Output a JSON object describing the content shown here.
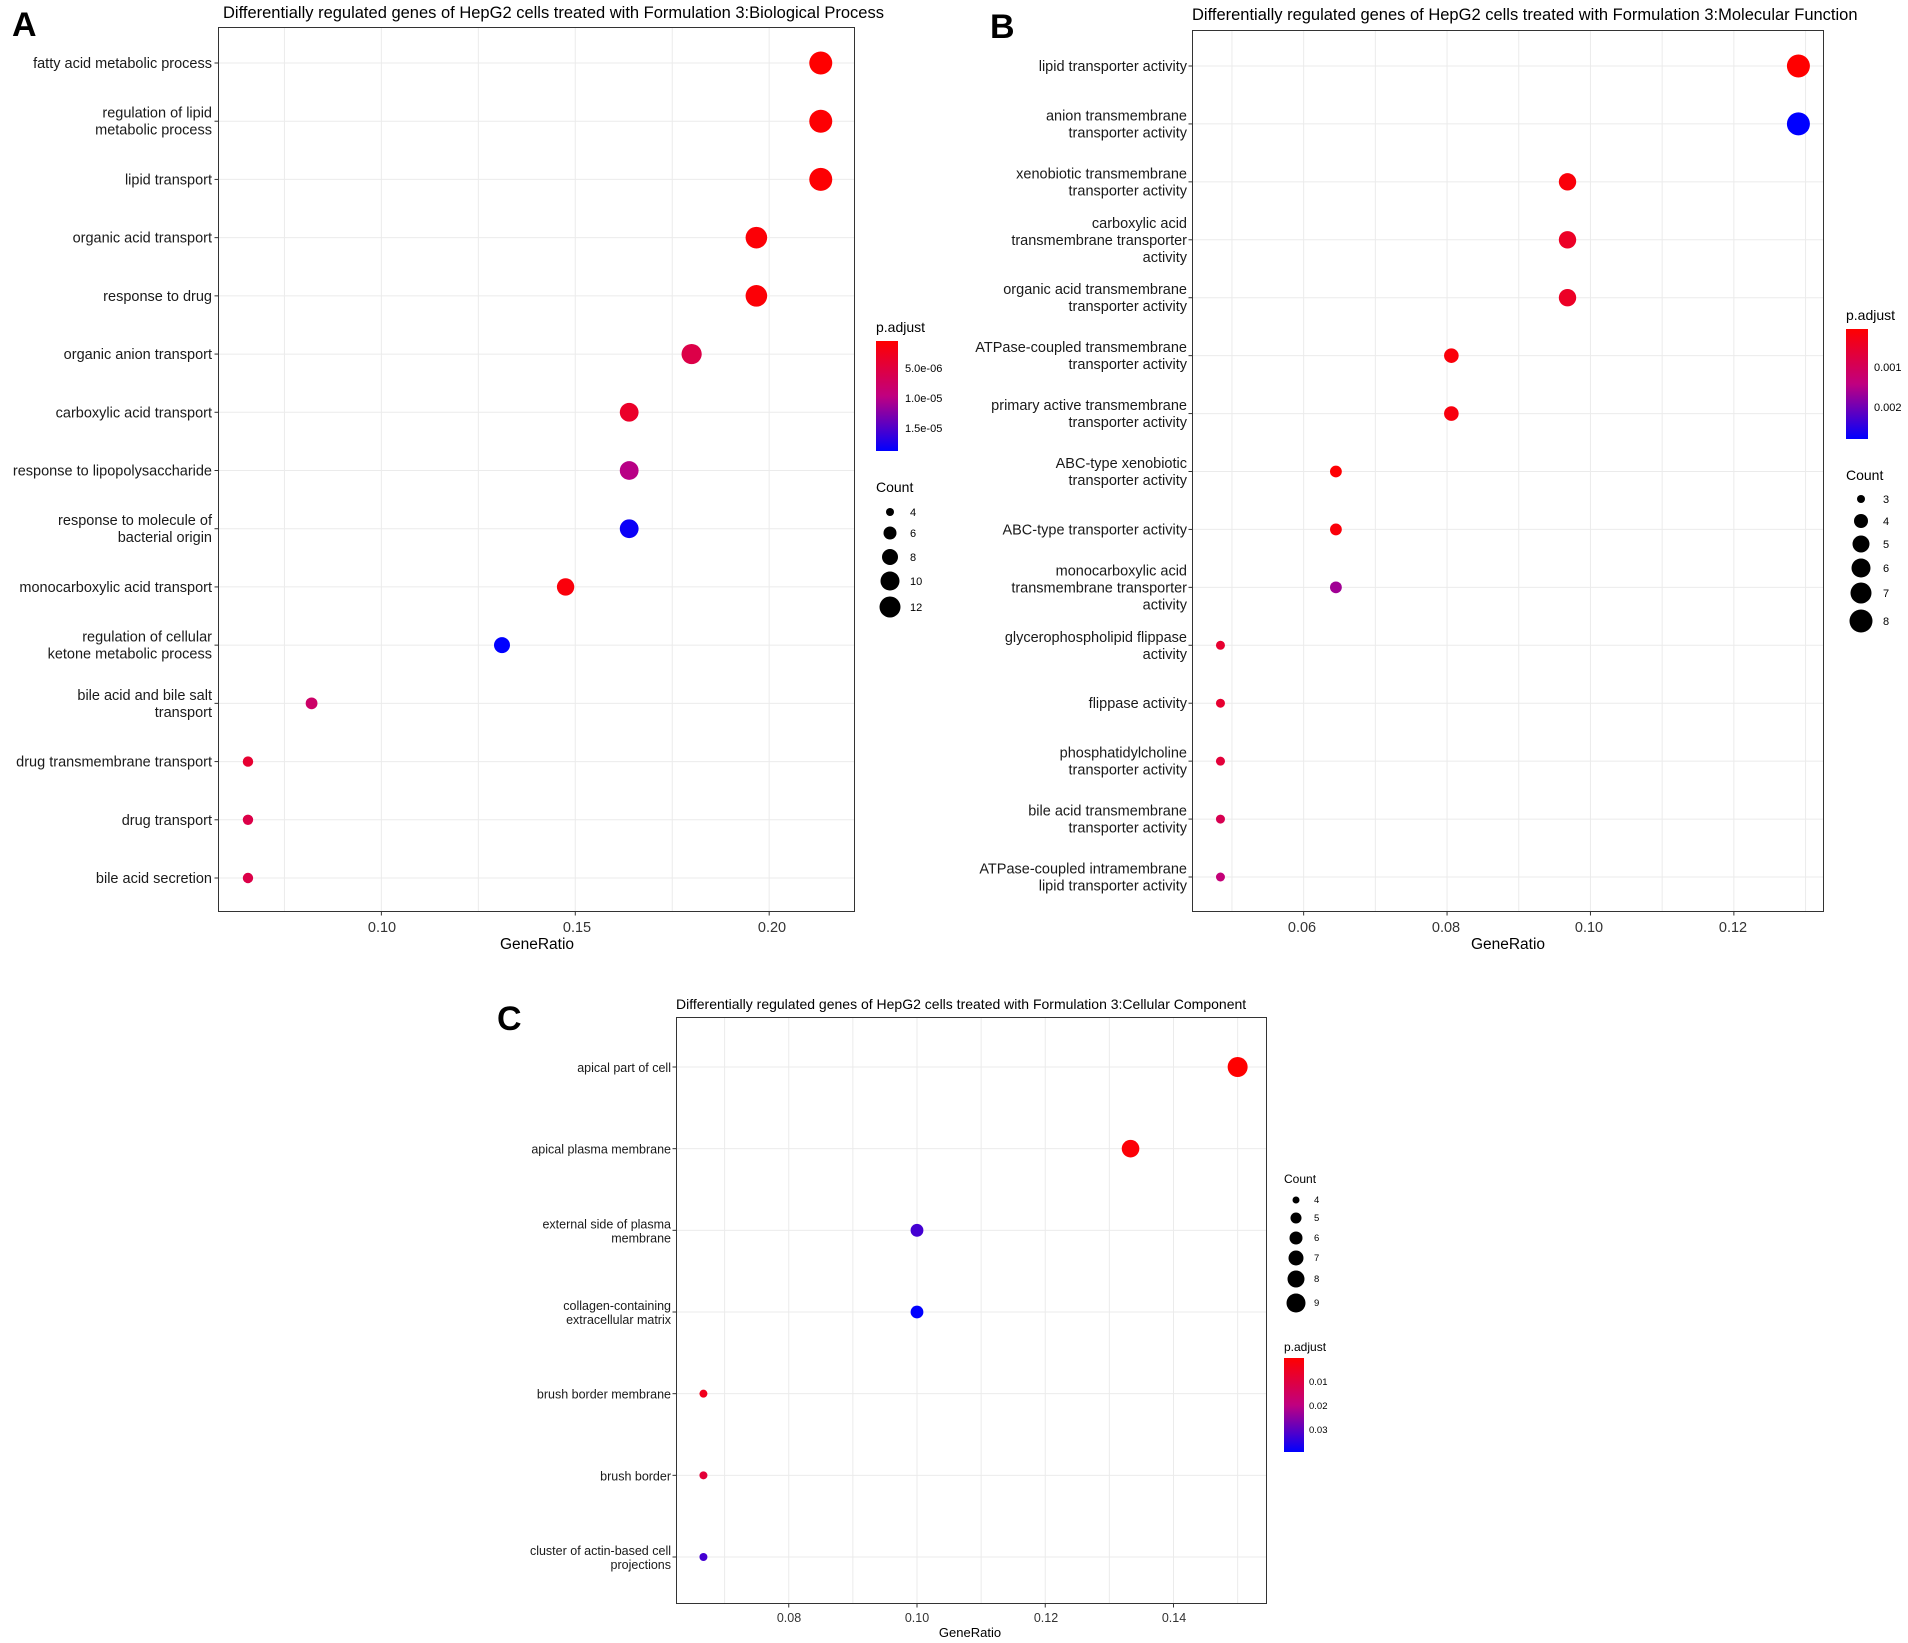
{
  "panels": [
    {
      "label": "A",
      "title": "Differentially regulated genes of HepG2 cells treated with Formulation 3:Biological Process",
      "xlabel": "GeneRatio",
      "xticks": [
        "0.10",
        "0.15",
        "0.20"
      ],
      "legend_padjust": {
        "title": "p.adjust",
        "labels": [
          "5.0e-06",
          "1.0e-05",
          "1.5e-05"
        ]
      },
      "legend_count": {
        "title": "Count",
        "labels": [
          "4",
          "6",
          "8",
          "10",
          "12"
        ]
      }
    },
    {
      "label": "B",
      "title": "Differentially regulated genes of HepG2 cells treated with Formulation 3:Molecular Function",
      "xlabel": "GeneRatio",
      "xticks": [
        "0.06",
        "0.08",
        "0.10",
        "0.12"
      ],
      "legend_padjust": {
        "title": "p.adjust",
        "labels": [
          "0.001",
          "0.002"
        ]
      },
      "legend_count": {
        "title": "Count",
        "labels": [
          "3",
          "4",
          "5",
          "6",
          "7",
          "8"
        ]
      }
    },
    {
      "label": "C",
      "title": "Differentially regulated genes of HepG2 cells treated with Formulation 3:Cellular Component",
      "xlabel": "GeneRatio",
      "xticks": [
        "0.08",
        "0.10",
        "0.12",
        "0.14"
      ],
      "legend_padjust": {
        "title": "p.adjust",
        "labels": [
          "0.01",
          "0.02",
          "0.03"
        ]
      },
      "legend_count": {
        "title": "Count",
        "labels": [
          "4",
          "5",
          "6",
          "7",
          "8",
          "9"
        ]
      }
    }
  ],
  "colors": {
    "low_padjust": "#ff0000",
    "high_padjust": "#0000ff",
    "point": "#000000"
  },
  "chart_data": [
    {
      "type": "scatter",
      "panel": "A",
      "title": "Differentially regulated genes of HepG2 cells treated with Formulation 3:Biological Process",
      "xlabel": "GeneRatio",
      "ylabel": "",
      "xlim": [
        0.058,
        0.222
      ],
      "grid": true,
      "padjust_range": [
        8e-07,
        1.75e-05
      ],
      "count_range": [
        3,
        13
      ],
      "series": [
        {
          "name": "fatty acid metabolic process",
          "label_lines": [
            "fatty acid metabolic process"
          ],
          "x": 0.2133,
          "count": 13,
          "padjust": 8e-07
        },
        {
          "name": "regulation of lipid metabolic process",
          "label_lines": [
            "regulation of lipid",
            "metabolic process"
          ],
          "x": 0.2133,
          "count": 13,
          "padjust": 1e-06
        },
        {
          "name": "lipid transport",
          "label_lines": [
            "lipid transport"
          ],
          "x": 0.2133,
          "count": 13,
          "padjust": 1e-06
        },
        {
          "name": "organic acid transport",
          "label_lines": [
            "organic acid transport"
          ],
          "x": 0.1967,
          "count": 12,
          "padjust": 1.2e-06
        },
        {
          "name": "response to drug",
          "label_lines": [
            "response to drug"
          ],
          "x": 0.1967,
          "count": 12,
          "padjust": 1.2e-06
        },
        {
          "name": "organic anion transport",
          "label_lines": [
            "organic anion transport"
          ],
          "x": 0.18,
          "count": 11,
          "padjust": 5.5e-06
        },
        {
          "name": "carboxylic acid transport",
          "label_lines": [
            "carboxylic acid transport"
          ],
          "x": 0.1639,
          "count": 10,
          "padjust": 3.5e-06
        },
        {
          "name": "response to lipopolysaccharide",
          "label_lines": [
            "response to lipopolysaccharide"
          ],
          "x": 0.1639,
          "count": 10,
          "padjust": 9.5e-06
        },
        {
          "name": "response to molecule of bacterial origin",
          "label_lines": [
            "response to molecule of",
            "bacterial origin"
          ],
          "x": 0.1639,
          "count": 10,
          "padjust": 1.7e-05
        },
        {
          "name": "monocarboxylic acid transport",
          "label_lines": [
            "monocarboxylic acid transport"
          ],
          "x": 0.1475,
          "count": 9,
          "padjust": 1.5e-06
        },
        {
          "name": "regulation of cellular ketone metabolic process",
          "label_lines": [
            "regulation of cellular",
            "ketone metabolic process"
          ],
          "x": 0.1311,
          "count": 8,
          "padjust": 1.75e-05
        },
        {
          "name": "bile acid and bile salt transport",
          "label_lines": [
            "bile acid and bile salt",
            "transport"
          ],
          "x": 0.082,
          "count": 5,
          "padjust": 7.5e-06
        },
        {
          "name": "drug transmembrane transport",
          "label_lines": [
            "drug transmembrane transport"
          ],
          "x": 0.0656,
          "count": 4,
          "padjust": 4e-06
        },
        {
          "name": "drug transport",
          "label_lines": [
            "drug transport"
          ],
          "x": 0.0656,
          "count": 4,
          "padjust": 5.5e-06
        },
        {
          "name": "bile acid secretion",
          "label_lines": [
            "bile acid secretion"
          ],
          "x": 0.0656,
          "count": 4,
          "padjust": 5.5e-06
        }
      ]
    },
    {
      "type": "scatter",
      "panel": "B",
      "title": "Differentially regulated genes of HepG2 cells treated with Formulation 3:Molecular Function",
      "xlabel": "GeneRatio",
      "ylabel": "",
      "xlim": [
        0.0445,
        0.1325
      ],
      "grid": true,
      "padjust_range": [
        5e-05,
        0.00272
      ],
      "count_range": [
        3,
        8
      ],
      "series": [
        {
          "name": "lipid transporter activity",
          "label_lines": [
            "lipid transporter activity"
          ],
          "x": 0.129,
          "count": 8,
          "padjust": 5e-05
        },
        {
          "name": "anion transmembrane transporter activity",
          "label_lines": [
            "anion transmembrane",
            "transporter activity"
          ],
          "x": 0.129,
          "count": 8,
          "padjust": 0.00272
        },
        {
          "name": "xenobiotic transmembrane transporter activity",
          "label_lines": [
            "xenobiotic transmembrane",
            "transporter activity"
          ],
          "x": 0.0968,
          "count": 6,
          "padjust": 0.00015
        },
        {
          "name": "carboxylic acid transmembrane transporter activity",
          "label_lines": [
            "carboxylic acid",
            "transmembrane transporter",
            "activity"
          ],
          "x": 0.0968,
          "count": 6,
          "padjust": 0.00045
        },
        {
          "name": "organic acid transmembrane transporter activity",
          "label_lines": [
            "organic acid transmembrane",
            "transporter activity"
          ],
          "x": 0.0968,
          "count": 6,
          "padjust": 0.00045
        },
        {
          "name": "ATPase-coupled transmembrane transporter activity",
          "label_lines": [
            "ATPase-coupled transmembrane",
            "transporter activity"
          ],
          "x": 0.0806,
          "count": 5,
          "padjust": 0.00015
        },
        {
          "name": "primary active transmembrane transporter activity",
          "label_lines": [
            "primary active transmembrane",
            "transporter activity"
          ],
          "x": 0.0806,
          "count": 5,
          "padjust": 0.0002
        },
        {
          "name": "ABC-type xenobiotic transporter activity",
          "label_lines": [
            "ABC-type xenobiotic",
            "transporter activity"
          ],
          "x": 0.0645,
          "count": 4,
          "padjust": 8e-05
        },
        {
          "name": "ABC-type transporter activity",
          "label_lines": [
            "ABC-type transporter activity"
          ],
          "x": 0.0645,
          "count": 4,
          "padjust": 0.00015
        },
        {
          "name": "monocarboxylic acid transmembrane transporter activity",
          "label_lines": [
            "monocarboxylic acid",
            "transmembrane transporter",
            "activity"
          ],
          "x": 0.0645,
          "count": 4,
          "padjust": 0.0016
        },
        {
          "name": "glycerophospholipid flippase activity",
          "label_lines": [
            "glycerophospholipid flippase",
            "activity"
          ],
          "x": 0.0484,
          "count": 3,
          "padjust": 0.00055
        },
        {
          "name": "flippase activity",
          "label_lines": [
            "flippase activity"
          ],
          "x": 0.0484,
          "count": 3,
          "padjust": 0.00055
        },
        {
          "name": "phosphatidylcholine transporter activity",
          "label_lines": [
            "phosphatidylcholine",
            "transporter activity"
          ],
          "x": 0.0484,
          "count": 3,
          "padjust": 0.00065
        },
        {
          "name": "bile acid transmembrane transporter activity",
          "label_lines": [
            "bile acid transmembrane",
            "transporter activity"
          ],
          "x": 0.0484,
          "count": 3,
          "padjust": 0.0009
        },
        {
          "name": "ATPase-coupled intramembrane lipid transporter activity",
          "label_lines": [
            "ATPase-coupled intramembrane",
            "lipid transporter activity"
          ],
          "x": 0.0484,
          "count": 3,
          "padjust": 0.0013
        }
      ]
    },
    {
      "type": "scatter",
      "panel": "C",
      "title": "Differentially regulated genes of HepG2 cells treated with Formulation 3:Cellular Component",
      "xlabel": "GeneRatio",
      "ylabel": "",
      "xlim": [
        0.0625,
        0.1545
      ],
      "grid": true,
      "padjust_range": [
        0.002,
        0.0385
      ],
      "count_range": [
        4,
        9
      ],
      "series": [
        {
          "name": "apical part of cell",
          "label_lines": [
            "apical part of cell"
          ],
          "x": 0.15,
          "count": 9,
          "padjust": 0.002
        },
        {
          "name": "apical plasma membrane",
          "label_lines": [
            "apical plasma membrane"
          ],
          "x": 0.1333,
          "count": 8,
          "padjust": 0.003
        },
        {
          "name": "external side of plasma membrane",
          "label_lines": [
            "external side of plasma",
            "membrane"
          ],
          "x": 0.1,
          "count": 6,
          "padjust": 0.032
        },
        {
          "name": "collagen-containing extracellular matrix",
          "label_lines": [
            "collagen-containing",
            "extracellular matrix"
          ],
          "x": 0.1,
          "count": 6,
          "padjust": 0.0385
        },
        {
          "name": "brush border membrane",
          "label_lines": [
            "brush border membrane"
          ],
          "x": 0.0667,
          "count": 4,
          "padjust": 0.006
        },
        {
          "name": "brush border",
          "label_lines": [
            "brush border"
          ],
          "x": 0.0667,
          "count": 4,
          "padjust": 0.01
        },
        {
          "name": "cluster of actin-based cell projections",
          "label_lines": [
            "cluster of actin-based cell",
            "projections"
          ],
          "x": 0.0667,
          "count": 4,
          "padjust": 0.032
        }
      ]
    }
  ]
}
